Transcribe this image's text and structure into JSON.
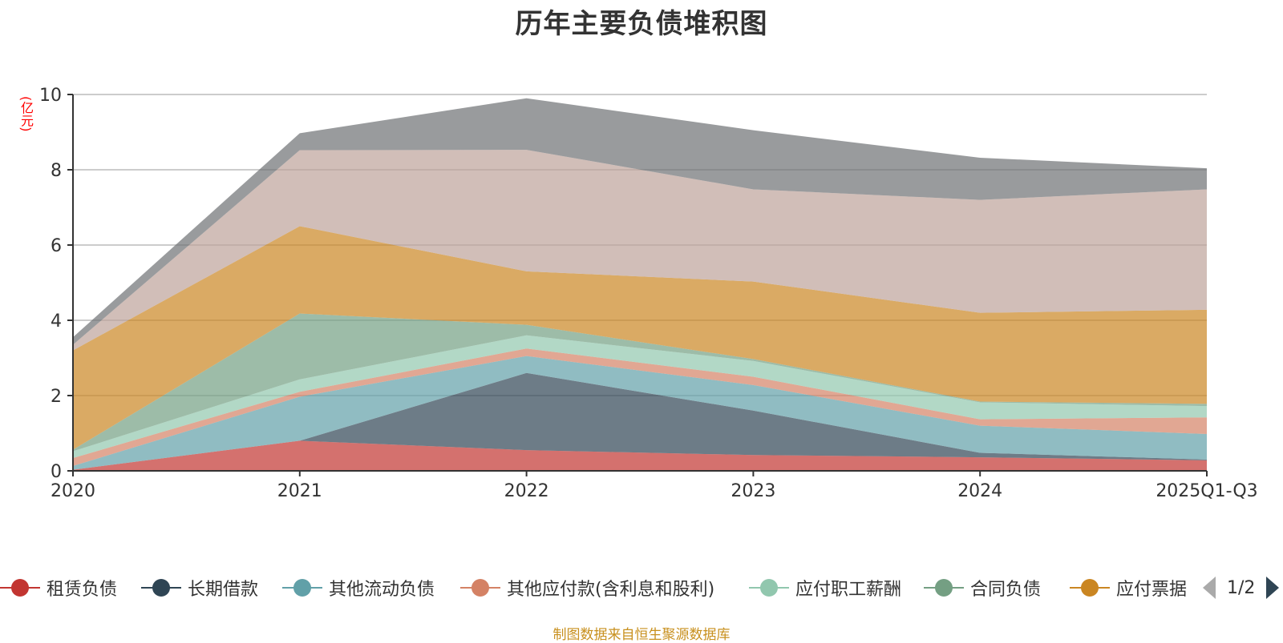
{
  "chart_data": {
    "type": "area",
    "stacked": true,
    "title": "历年主要负债堆积图",
    "ylabel": "(亿元)",
    "xlabel": "",
    "ylim": [
      0,
      10
    ],
    "yticks": [
      0,
      2,
      4,
      6,
      8,
      10
    ],
    "grid": true,
    "categories": [
      "2020",
      "2021",
      "2022",
      "2023",
      "2024",
      "2025Q1-Q3"
    ],
    "series": [
      {
        "name": "租赁负债",
        "color": "#c23531",
        "values": [
          0.03,
          0.8,
          0.55,
          0.42,
          0.36,
          0.28
        ]
      },
      {
        "name": "长期借款",
        "color": "#2f4554",
        "values": [
          0.0,
          0.0,
          2.05,
          1.18,
          0.12,
          0.02
        ]
      },
      {
        "name": "其他流动负债",
        "color": "#61a0a8",
        "values": [
          0.1,
          1.17,
          0.45,
          0.68,
          0.72,
          0.68
        ]
      },
      {
        "name": "其他应付款(含利息和股利)",
        "color": "#d48265",
        "values": [
          0.21,
          0.13,
          0.2,
          0.22,
          0.17,
          0.44
        ]
      },
      {
        "name": "应付职工薪酬",
        "color": "#91c7ae",
        "values": [
          0.18,
          0.33,
          0.35,
          0.42,
          0.45,
          0.3
        ]
      },
      {
        "name": "合同负债",
        "color": "#749f83",
        "values": [
          0.04,
          1.75,
          0.28,
          0.05,
          0.02,
          0.06
        ]
      },
      {
        "name": "应付票据",
        "color": "#ca8622",
        "values": [
          2.64,
          2.32,
          1.42,
          2.06,
          2.36,
          2.5
        ]
      },
      {
        "name": "",
        "color": "#bda29a",
        "values": [
          0.15,
          2.02,
          3.23,
          2.45,
          3.0,
          3.2
        ]
      },
      {
        "name": "",
        "color": "#6e7074",
        "values": [
          0.2,
          0.45,
          1.37,
          1.57,
          1.12,
          0.56
        ]
      }
    ],
    "legend_position": "bottom",
    "legend_page": "1/2"
  },
  "legend": {
    "visible_items": [
      "租赁负债",
      "长期借款",
      "其他流动负债",
      "其他应付款(含利息和股利)",
      "应付职工薪酬",
      "合同负债",
      "应付票据"
    ],
    "page_indicator": "1/2"
  },
  "footer": {
    "source": "制图数据来自恒生聚源数据库"
  }
}
